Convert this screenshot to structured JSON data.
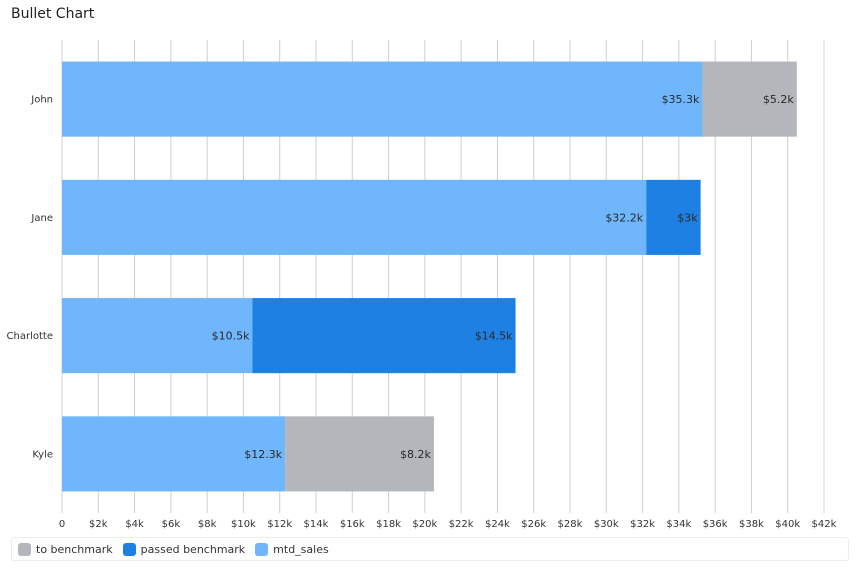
{
  "chart_data": {
    "type": "bar",
    "orientation": "horizontal",
    "stacked": true,
    "title": "Bullet Chart",
    "xlabel": "",
    "ylabel": "",
    "categories": [
      "John",
      "Jane",
      "Charlotte",
      "Kyle"
    ],
    "series": [
      {
        "name": "mtd_sales",
        "color": "#6fb6fd",
        "values": [
          35300,
          32200,
          10500,
          12300
        ],
        "labels": [
          "$35.3k",
          "$32.2k",
          "$10.5k",
          "$12.3k"
        ]
      },
      {
        "name": "passed benchmark",
        "color": "#1e80e3",
        "values": [
          0,
          3000,
          14500,
          0
        ],
        "labels": [
          "",
          "$3k",
          "$14.5k",
          ""
        ]
      },
      {
        "name": "to benchmark",
        "color": "#b3b7bb",
        "values": [
          5200,
          0,
          0,
          8200
        ],
        "labels": [
          "$5.2k",
          "",
          "",
          "$8.2k"
        ]
      }
    ],
    "xlim": [
      0,
      42000
    ],
    "x_ticks": [
      0,
      2000,
      4000,
      6000,
      8000,
      10000,
      12000,
      14000,
      16000,
      18000,
      20000,
      22000,
      24000,
      26000,
      28000,
      30000,
      32000,
      34000,
      36000,
      38000,
      40000,
      42000
    ],
    "x_tick_labels": [
      "0",
      "$2k",
      "$4k",
      "$6k",
      "$8k",
      "$10k",
      "$12k",
      "$14k",
      "$16k",
      "$18k",
      "$20k",
      "$22k",
      "$24k",
      "$26k",
      "$28k",
      "$30k",
      "$32k",
      "$34k",
      "$36k",
      "$38k",
      "$40k",
      "$42k"
    ],
    "grid": true,
    "legend_position": "bottom-left",
    "legend": [
      {
        "name": "to benchmark",
        "color": "#b3b7bb"
      },
      {
        "name": "passed benchmark",
        "color": "#1e80e3"
      },
      {
        "name": "mtd_sales",
        "color": "#6fb6fd"
      }
    ]
  }
}
